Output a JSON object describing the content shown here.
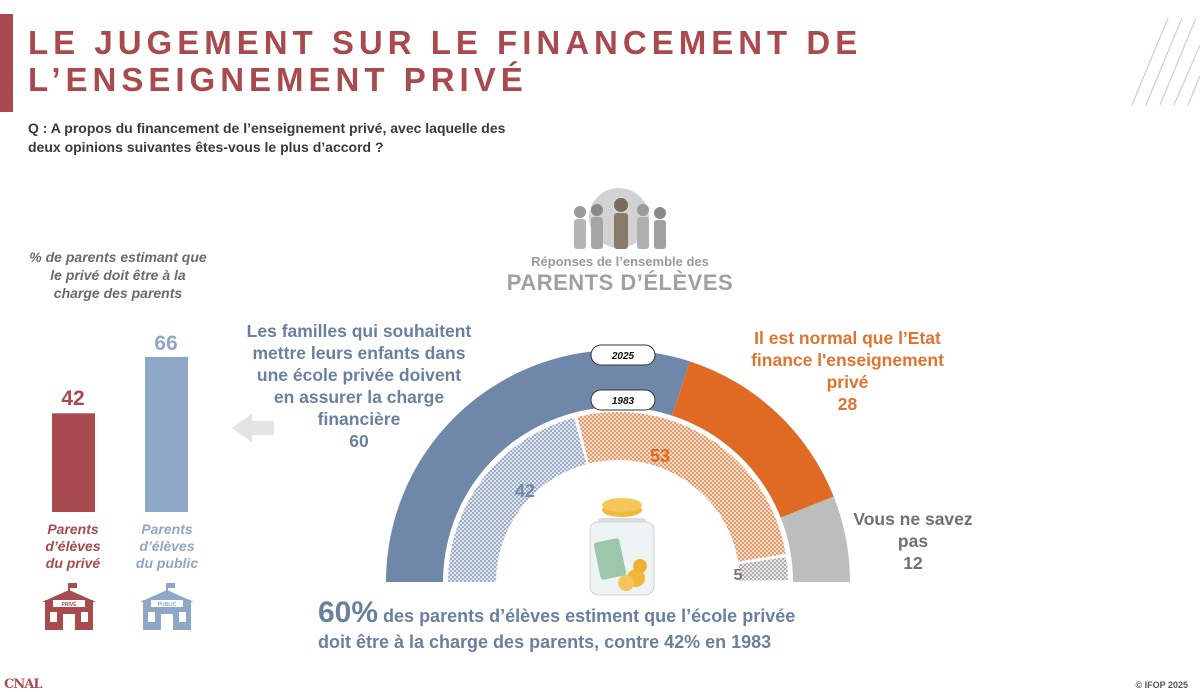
{
  "header": {
    "title_line1": "LE JUGEMENT SUR LE FINANCEMENT DE",
    "title_line2": "L’ENSEIGNEMENT PRIVÉ",
    "question_line1": "Q : A propos du financement de l’enseignement privé, avec laquelle des",
    "question_line2": "deux opinions suivantes êtes-vous le plus d’accord ?"
  },
  "center": {
    "subtitle": "Réponses de l’ensemble des",
    "title": "PARENTS D’ÉLÈVES"
  },
  "opinions": {
    "left_lines": [
      "Les familles qui souhaitent",
      "mettre leurs enfants dans",
      "une école privée doivent",
      "en assurer la charge",
      "financière"
    ],
    "left_value": "60",
    "right_lines": [
      "Il est normal que l’Etat",
      "finance l'enseignement",
      "privé"
    ],
    "right_value": "28",
    "nsp_lines": [
      "Vous ne savez",
      "pas"
    ],
    "nsp_value": "12"
  },
  "side_panel": {
    "caption_lines": [
      "% de parents estimant que",
      "le privé doit être à la",
      "charge des parents"
    ],
    "bars": [
      {
        "value": "42",
        "label_lines": [
          "Parents",
          "d’élèves",
          "du privé"
        ],
        "sign": "PRIVÉ"
      },
      {
        "value": "66",
        "label_lines": [
          "Parents",
          "d’élèves",
          "du public"
        ],
        "sign": "PUBLIC"
      }
    ]
  },
  "conclusion": {
    "big": "60%",
    "text1": " des parents d’élèves estiment que l’école privée",
    "text2": "doit être à la charge des parents, contre 42% en 1983"
  },
  "footer": {
    "copyright": "© IFOP 2025",
    "logo": "CNAL"
  },
  "colors": {
    "primary": "#a94a4f",
    "blue": "#6f87a8",
    "orange": "#e06a24",
    "grey": "#bdbdbd",
    "light_blue": "#8fa7c6"
  },
  "chart_data": [
    {
      "type": "semi_donut",
      "title": "Réponses de l’ensemble des PARENTS D’ÉLÈVES",
      "series": [
        {
          "name": "2025",
          "values": [
            60,
            28,
            12
          ]
        },
        {
          "name": "1983",
          "values": [
            42,
            53,
            5
          ]
        }
      ],
      "categories": [
        "Les familles qui souhaitent mettre leurs enfants dans une école privée doivent en assurer la charge financière",
        "Il est normal que l’Etat finance l'enseignement privé",
        "Vous ne savez pas"
      ]
    },
    {
      "type": "bar",
      "title": "% de parents estimant que le privé doit être à la charge des parents",
      "categories": [
        "Parents d’élèves du privé",
        "Parents d’élèves du public"
      ],
      "values": [
        42,
        66
      ],
      "ylim": [
        0,
        100
      ]
    }
  ]
}
